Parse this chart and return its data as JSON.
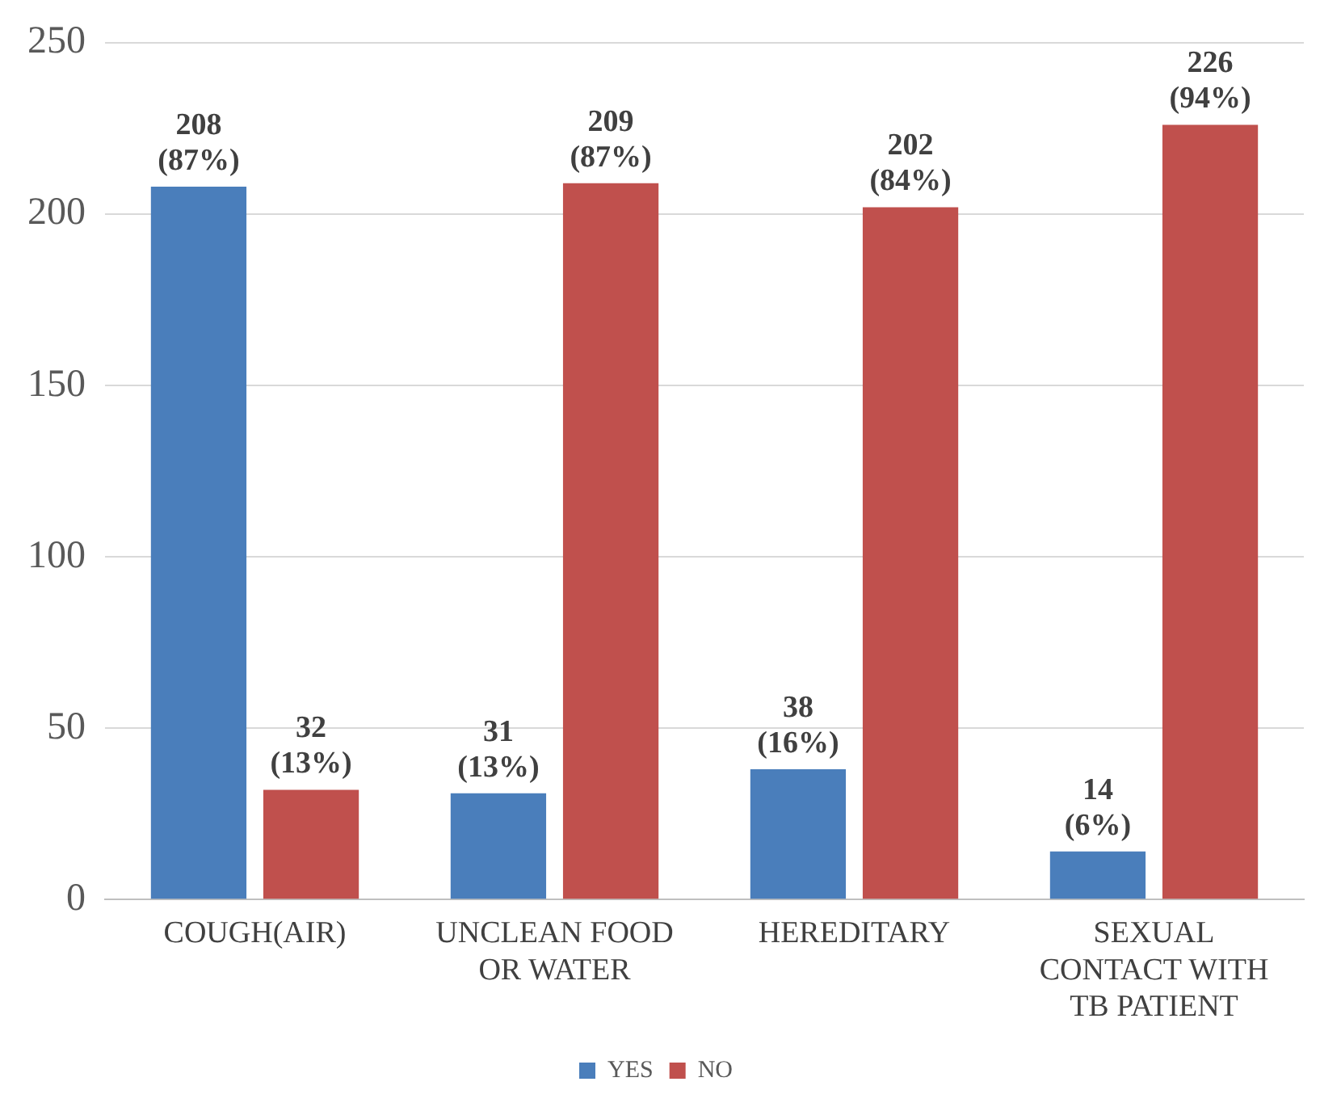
{
  "chart_data": {
    "type": "bar",
    "categories": [
      "COUGH(AIR)",
      "UNCLEAN FOOD\nOR WATER",
      "HEREDITARY",
      "SEXUAL\nCONTACT WITH\nTB PATIENT"
    ],
    "series": [
      {
        "name": "YES",
        "color": "#4a7ebb",
        "values": [
          208,
          31,
          38,
          14
        ],
        "value_labels": [
          "208\n(87%)",
          "31\n(13%)",
          "38\n(16%)",
          "14\n(6%)"
        ]
      },
      {
        "name": "NO",
        "color": "#c0504d",
        "values": [
          32,
          209,
          202,
          226
        ],
        "value_labels": [
          "32\n(13%)",
          "209\n(87%)",
          "202\n(84%)",
          "226\n(94%)"
        ]
      }
    ],
    "ylim": [
      0,
      250
    ],
    "yticks": [
      0,
      50,
      100,
      150,
      200,
      250
    ],
    "grid": "y",
    "legend": "bottom"
  }
}
